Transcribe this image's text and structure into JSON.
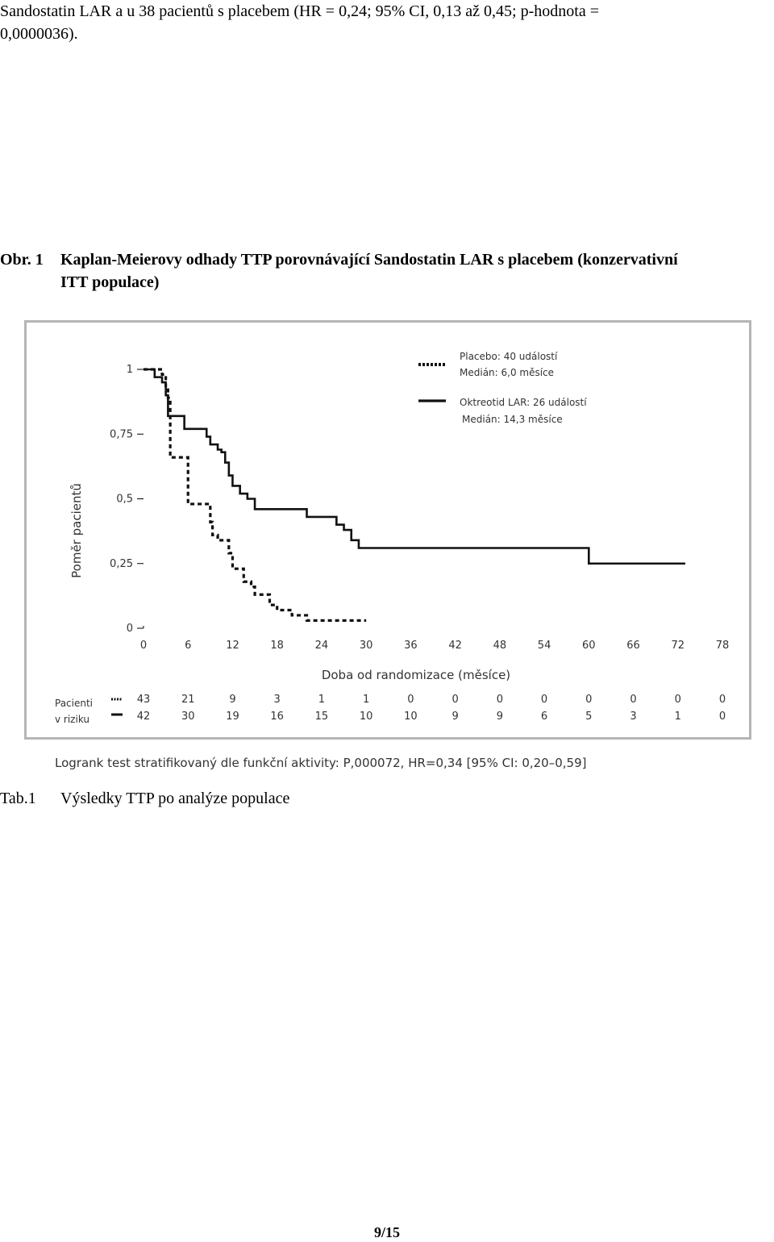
{
  "intro": {
    "line1": "Sandostatin LAR a u 38 pacientů s placebem (HR = 0,24; 95% CI, 0,13 až 0,45; p-hodnota =",
    "line2": "0,0000036)."
  },
  "figure_caption": {
    "number": "Obr. 1",
    "line1": "Kaplan-Meierovy odhady TTP porovnávající Sandostatin LAR s placebem (konzervativní",
    "line2": "ITT populace)"
  },
  "chart_data": {
    "type": "line",
    "xlabel": "Doba od randomizace (měsíce)",
    "ylabel": "Poměr pacientů",
    "xlim": [
      0,
      78
    ],
    "ylim": [
      0,
      1
    ],
    "x_ticks": [
      "0",
      "6",
      "12",
      "18",
      "24",
      "30",
      "36",
      "42",
      "48",
      "54",
      "60",
      "66",
      "72",
      "78"
    ],
    "y_ticks": [
      "0",
      "0,25",
      "0,5",
      "0,75",
      "1"
    ],
    "series": [
      {
        "name": "Placebo: 40 událostí",
        "median": "Medián: 6,0 měsíce",
        "style": "dashed",
        "color": "#111111",
        "x": [
          0,
          2,
          2.5,
          3,
          3.3,
          3.6,
          5.5,
          6,
          7,
          9,
          9.3,
          10,
          11.5,
          12,
          13,
          13.5,
          14.5,
          15,
          17,
          18,
          20,
          22,
          24,
          30
        ],
        "y": [
          1,
          1,
          0.98,
          0.93,
          0.89,
          0.66,
          0.66,
          0.48,
          0.48,
          0.41,
          0.36,
          0.34,
          0.29,
          0.23,
          0.23,
          0.18,
          0.16,
          0.13,
          0.09,
          0.07,
          0.05,
          0.03,
          0.03,
          0.03
        ]
      },
      {
        "name": "Oktreotid LAR: 26 událostí",
        "median": "Medián: 14,3 měsíce",
        "style": "solid",
        "color": "#111111",
        "x": [
          0,
          1.5,
          2.5,
          3,
          3.3,
          5.5,
          8,
          8.5,
          9,
          10,
          10.5,
          11,
          11.5,
          12,
          13,
          14,
          15,
          20,
          22,
          26,
          27,
          28,
          29,
          59,
          60,
          73
        ],
        "y": [
          1,
          0.97,
          0.95,
          0.9,
          0.82,
          0.77,
          0.77,
          0.74,
          0.71,
          0.69,
          0.68,
          0.64,
          0.59,
          0.55,
          0.52,
          0.5,
          0.46,
          0.46,
          0.43,
          0.4,
          0.38,
          0.34,
          0.31,
          0.31,
          0.25,
          0.25
        ]
      }
    ],
    "legend_position": "top-right",
    "at_risk": {
      "title_line1": "Pacienti",
      "title_line2": "v riziku",
      "placebo": [
        "43",
        "21",
        "9",
        "3",
        "1",
        "1",
        "0",
        "0",
        "0",
        "0",
        "0",
        "0",
        "0",
        "0"
      ],
      "oktreotid": [
        "42",
        "30",
        "19",
        "16",
        "15",
        "10",
        "10",
        "9",
        "9",
        "6",
        "5",
        "3",
        "1",
        "0"
      ]
    },
    "footnote": "Logrank test stratifikovaný dle funkční aktivity: P,000072, HR=0,34 [95% CI: 0,20–0,59]"
  },
  "table_caption": {
    "number": "Tab.1",
    "text": "Výsledky TTP po analýze populace"
  },
  "page_number": "9/15"
}
